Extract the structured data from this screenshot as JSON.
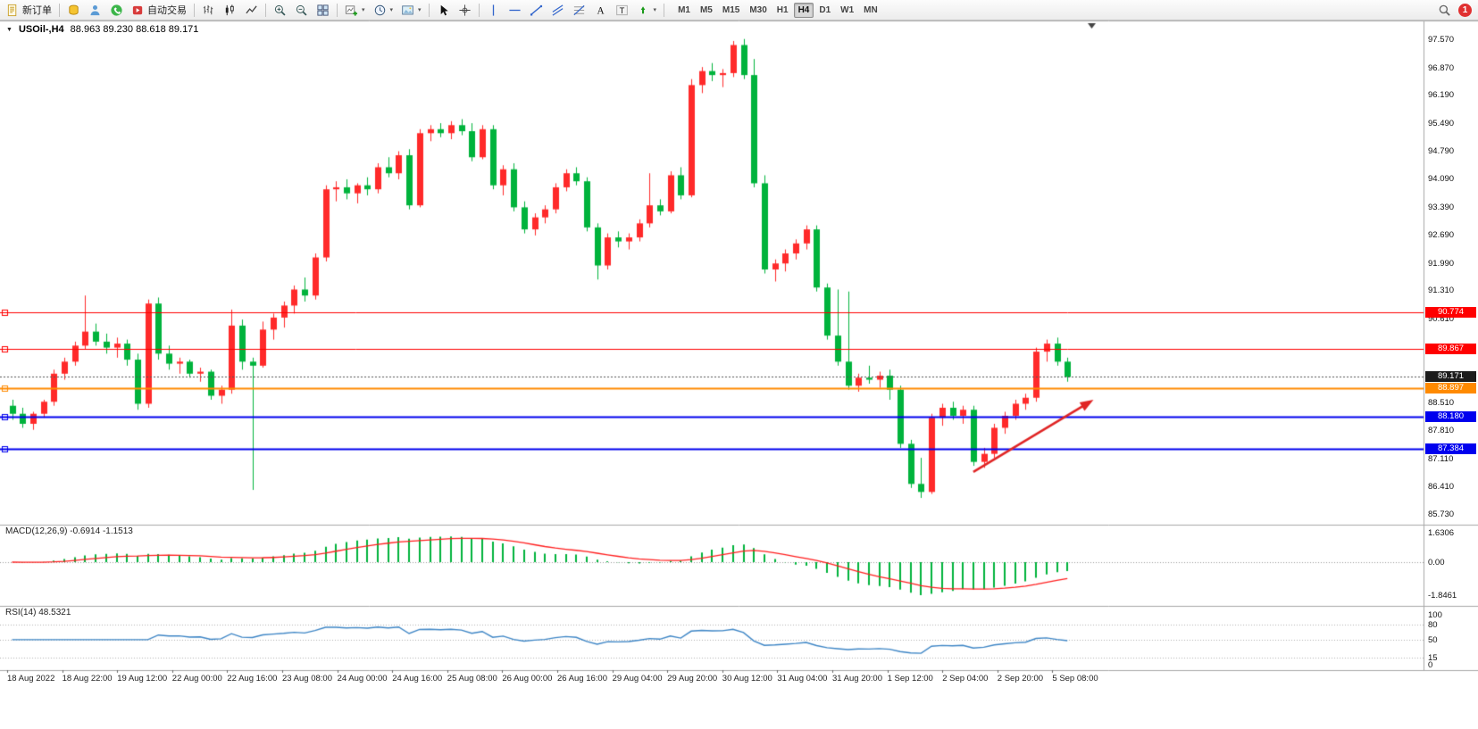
{
  "toolbar": {
    "new_order_label": "新订单",
    "autotrading_label": "自动交易",
    "timeframes": [
      "M1",
      "M5",
      "M15",
      "M30",
      "H1",
      "H4",
      "D1",
      "W1",
      "MN"
    ],
    "active_timeframe": "H4",
    "notification_count": "1"
  },
  "chart": {
    "header": {
      "symbol": "USOil-,H4",
      "ohlc": "88.963 89.230 88.618 89.171"
    },
    "price_axis_ticks": [
      "97.570",
      "96.870",
      "96.190",
      "95.490",
      "94.790",
      "94.090",
      "93.390",
      "92.690",
      "91.990",
      "91.310",
      "90.610",
      "88.510",
      "87.810",
      "87.110",
      "86.410",
      "85.730"
    ],
    "price_lines": [
      {
        "label": "90.774",
        "value": 90.774,
        "color": "#ff0000",
        "width": 1
      },
      {
        "label": "89.867",
        "value": 89.867,
        "color": "#ff0000",
        "width": 1
      },
      {
        "label": "88.897",
        "value": 88.897,
        "color": "#ff8a00",
        "width": 2
      },
      {
        "label": "88.180",
        "value": 88.18,
        "color": "#0000ee",
        "width": 2
      },
      {
        "label": "87.384",
        "value": 87.384,
        "color": "#0000ee",
        "width": 2
      }
    ],
    "current_price": {
      "label": "89.171",
      "value": 89.171,
      "color": "#1c1c1c"
    },
    "time_labels": [
      "18 Aug 2022",
      "18 Aug 22:00",
      "19 Aug 12:00",
      "22 Aug 00:00",
      "22 Aug 16:00",
      "23 Aug 08:00",
      "24 Aug 00:00",
      "24 Aug 16:00",
      "25 Aug 08:00",
      "26 Aug 00:00",
      "26 Aug 16:00",
      "29 Aug 04:00",
      "29 Aug 20:00",
      "30 Aug 12:00",
      "31 Aug 04:00",
      "31 Aug 20:00",
      "1 Sep 12:00",
      "2 Sep 04:00",
      "2 Sep 20:00",
      "5 Sep 08:00"
    ],
    "arrow": {
      "from_index": 92,
      "from_price": 86.8,
      "to_index": 103.5,
      "to_price": 88.6,
      "color": "#e02525"
    }
  },
  "chart_data": {
    "type": "candlestick",
    "symbol": "USOil-",
    "timeframe": "H4",
    "bull_color": "#ff2a2a",
    "bear_color": "#00b33c",
    "ylim": [
      85.55,
      97.95
    ],
    "candles": [
      [
        88.45,
        88.6,
        88.1,
        88.25
      ],
      [
        88.25,
        88.4,
        87.9,
        88.0
      ],
      [
        88.0,
        88.3,
        87.85,
        88.25
      ],
      [
        88.25,
        88.6,
        88.15,
        88.55
      ],
      [
        88.55,
        89.35,
        88.45,
        89.25
      ],
      [
        89.25,
        89.65,
        89.1,
        89.55
      ],
      [
        89.55,
        90.05,
        89.45,
        89.95
      ],
      [
        89.95,
        91.2,
        89.85,
        90.3
      ],
      [
        90.3,
        90.5,
        89.95,
        90.05
      ],
      [
        90.05,
        90.25,
        89.75,
        89.9
      ],
      [
        89.9,
        90.15,
        89.65,
        90.0
      ],
      [
        90.0,
        90.1,
        89.45,
        89.6
      ],
      [
        89.6,
        89.75,
        88.35,
        88.5
      ],
      [
        88.5,
        91.1,
        88.4,
        91.0
      ],
      [
        91.0,
        91.15,
        89.6,
        89.75
      ],
      [
        89.75,
        89.95,
        89.35,
        89.5
      ],
      [
        89.5,
        89.65,
        89.25,
        89.55
      ],
      [
        89.55,
        89.6,
        89.15,
        89.25
      ],
      [
        89.25,
        89.4,
        89.05,
        89.3
      ],
      [
        89.3,
        89.35,
        88.6,
        88.7
      ],
      [
        88.7,
        88.95,
        88.5,
        88.85
      ],
      [
        88.85,
        90.85,
        88.75,
        90.45
      ],
      [
        90.45,
        90.6,
        89.35,
        89.55
      ],
      [
        89.55,
        89.65,
        86.35,
        89.45
      ],
      [
        89.45,
        90.55,
        89.4,
        90.35
      ],
      [
        90.35,
        90.75,
        90.1,
        90.65
      ],
      [
        90.65,
        91.05,
        90.4,
        90.95
      ],
      [
        90.95,
        91.45,
        90.75,
        91.35
      ],
      [
        91.35,
        91.65,
        91.05,
        91.2
      ],
      [
        91.2,
        92.25,
        91.1,
        92.15
      ],
      [
        92.15,
        93.95,
        92.05,
        93.85
      ],
      [
        93.85,
        94.05,
        93.55,
        93.9
      ],
      [
        93.9,
        94.1,
        93.6,
        93.75
      ],
      [
        93.75,
        94.0,
        93.5,
        93.95
      ],
      [
        93.95,
        94.15,
        93.7,
        93.85
      ],
      [
        93.85,
        94.5,
        93.75,
        94.4
      ],
      [
        94.4,
        94.65,
        94.15,
        94.25
      ],
      [
        94.25,
        94.8,
        94.1,
        94.7
      ],
      [
        94.7,
        94.85,
        93.35,
        93.45
      ],
      [
        93.45,
        95.35,
        93.4,
        95.25
      ],
      [
        95.25,
        95.45,
        95.05,
        95.35
      ],
      [
        95.35,
        95.5,
        95.15,
        95.25
      ],
      [
        95.25,
        95.55,
        95.1,
        95.45
      ],
      [
        95.45,
        95.6,
        95.2,
        95.3
      ],
      [
        95.3,
        95.5,
        94.55,
        94.65
      ],
      [
        94.65,
        95.45,
        94.6,
        95.35
      ],
      [
        95.35,
        95.45,
        93.85,
        93.95
      ],
      [
        93.95,
        94.45,
        93.7,
        94.35
      ],
      [
        94.35,
        94.5,
        93.3,
        93.4
      ],
      [
        93.4,
        93.55,
        92.75,
        92.85
      ],
      [
        92.85,
        93.25,
        92.7,
        93.15
      ],
      [
        93.15,
        93.45,
        93.0,
        93.35
      ],
      [
        93.35,
        94.0,
        93.25,
        93.9
      ],
      [
        93.9,
        94.35,
        93.8,
        94.25
      ],
      [
        94.25,
        94.4,
        93.95,
        94.05
      ],
      [
        94.05,
        94.15,
        92.8,
        92.9
      ],
      [
        92.9,
        93.0,
        91.6,
        91.95
      ],
      [
        91.95,
        92.75,
        91.85,
        92.65
      ],
      [
        92.65,
        92.8,
        92.4,
        92.55
      ],
      [
        92.55,
        92.75,
        92.35,
        92.65
      ],
      [
        92.65,
        93.1,
        92.55,
        93.0
      ],
      [
        93.0,
        94.25,
        92.9,
        93.45
      ],
      [
        93.45,
        93.6,
        93.2,
        93.3
      ],
      [
        93.3,
        94.3,
        93.25,
        94.2
      ],
      [
        94.2,
        94.4,
        93.6,
        93.7
      ],
      [
        93.7,
        96.6,
        93.65,
        96.45
      ],
      [
        96.45,
        96.9,
        96.25,
        96.8
      ],
      [
        96.8,
        97.0,
        96.55,
        96.7
      ],
      [
        96.7,
        96.85,
        96.4,
        96.75
      ],
      [
        96.75,
        97.55,
        96.65,
        97.45
      ],
      [
        97.45,
        97.6,
        96.6,
        96.7
      ],
      [
        96.7,
        97.1,
        93.9,
        94.0
      ],
      [
        94.0,
        94.2,
        91.75,
        91.85
      ],
      [
        91.85,
        92.1,
        91.55,
        92.0
      ],
      [
        92.0,
        92.35,
        91.8,
        92.25
      ],
      [
        92.25,
        92.6,
        92.1,
        92.5
      ],
      [
        92.5,
        92.95,
        92.35,
        92.85
      ],
      [
        92.85,
        92.95,
        91.3,
        91.4
      ],
      [
        91.4,
        91.5,
        90.1,
        90.2
      ],
      [
        90.2,
        91.35,
        89.45,
        89.55
      ],
      [
        89.55,
        91.3,
        88.85,
        88.95
      ],
      [
        88.95,
        89.25,
        88.8,
        89.15
      ],
      [
        89.15,
        89.45,
        89.0,
        89.1
      ],
      [
        89.1,
        89.3,
        88.9,
        89.2
      ],
      [
        89.2,
        89.35,
        88.6,
        88.85
      ],
      [
        88.85,
        88.95,
        87.4,
        87.5
      ],
      [
        87.5,
        87.6,
        86.4,
        86.5
      ],
      [
        86.5,
        87.15,
        86.15,
        86.3
      ],
      [
        86.3,
        88.25,
        86.25,
        88.15
      ],
      [
        88.15,
        88.5,
        87.95,
        88.4
      ],
      [
        88.4,
        88.55,
        88.1,
        88.2
      ],
      [
        88.2,
        88.45,
        88.0,
        88.35
      ],
      [
        88.35,
        88.45,
        86.95,
        87.05
      ],
      [
        87.05,
        87.4,
        86.9,
        87.25
      ],
      [
        87.25,
        88.0,
        87.15,
        87.9
      ],
      [
        87.9,
        88.3,
        87.75,
        88.2
      ],
      [
        88.2,
        88.6,
        88.1,
        88.5
      ],
      [
        88.5,
        88.75,
        88.35,
        88.65
      ],
      [
        88.65,
        89.9,
        88.55,
        89.8
      ],
      [
        89.8,
        90.1,
        89.55,
        90.0
      ],
      [
        90.0,
        90.15,
        89.45,
        89.55
      ],
      [
        89.55,
        89.65,
        89.05,
        89.17
      ]
    ]
  },
  "macd": {
    "label": "MACD(12,26,9) -0.6914 -1.1513",
    "axis_ticks": [
      "1.6306",
      "0.00",
      "-1.8461"
    ],
    "hist_color": "#00b33c",
    "signal_color": "#ff1f1f"
  },
  "rsi": {
    "label": "RSI(14) 48.5321",
    "axis_ticks": [
      "100",
      "80",
      "50",
      "15",
      "0"
    ],
    "levels": [
      80,
      50,
      15
    ],
    "line_color": "#3e86c6"
  }
}
